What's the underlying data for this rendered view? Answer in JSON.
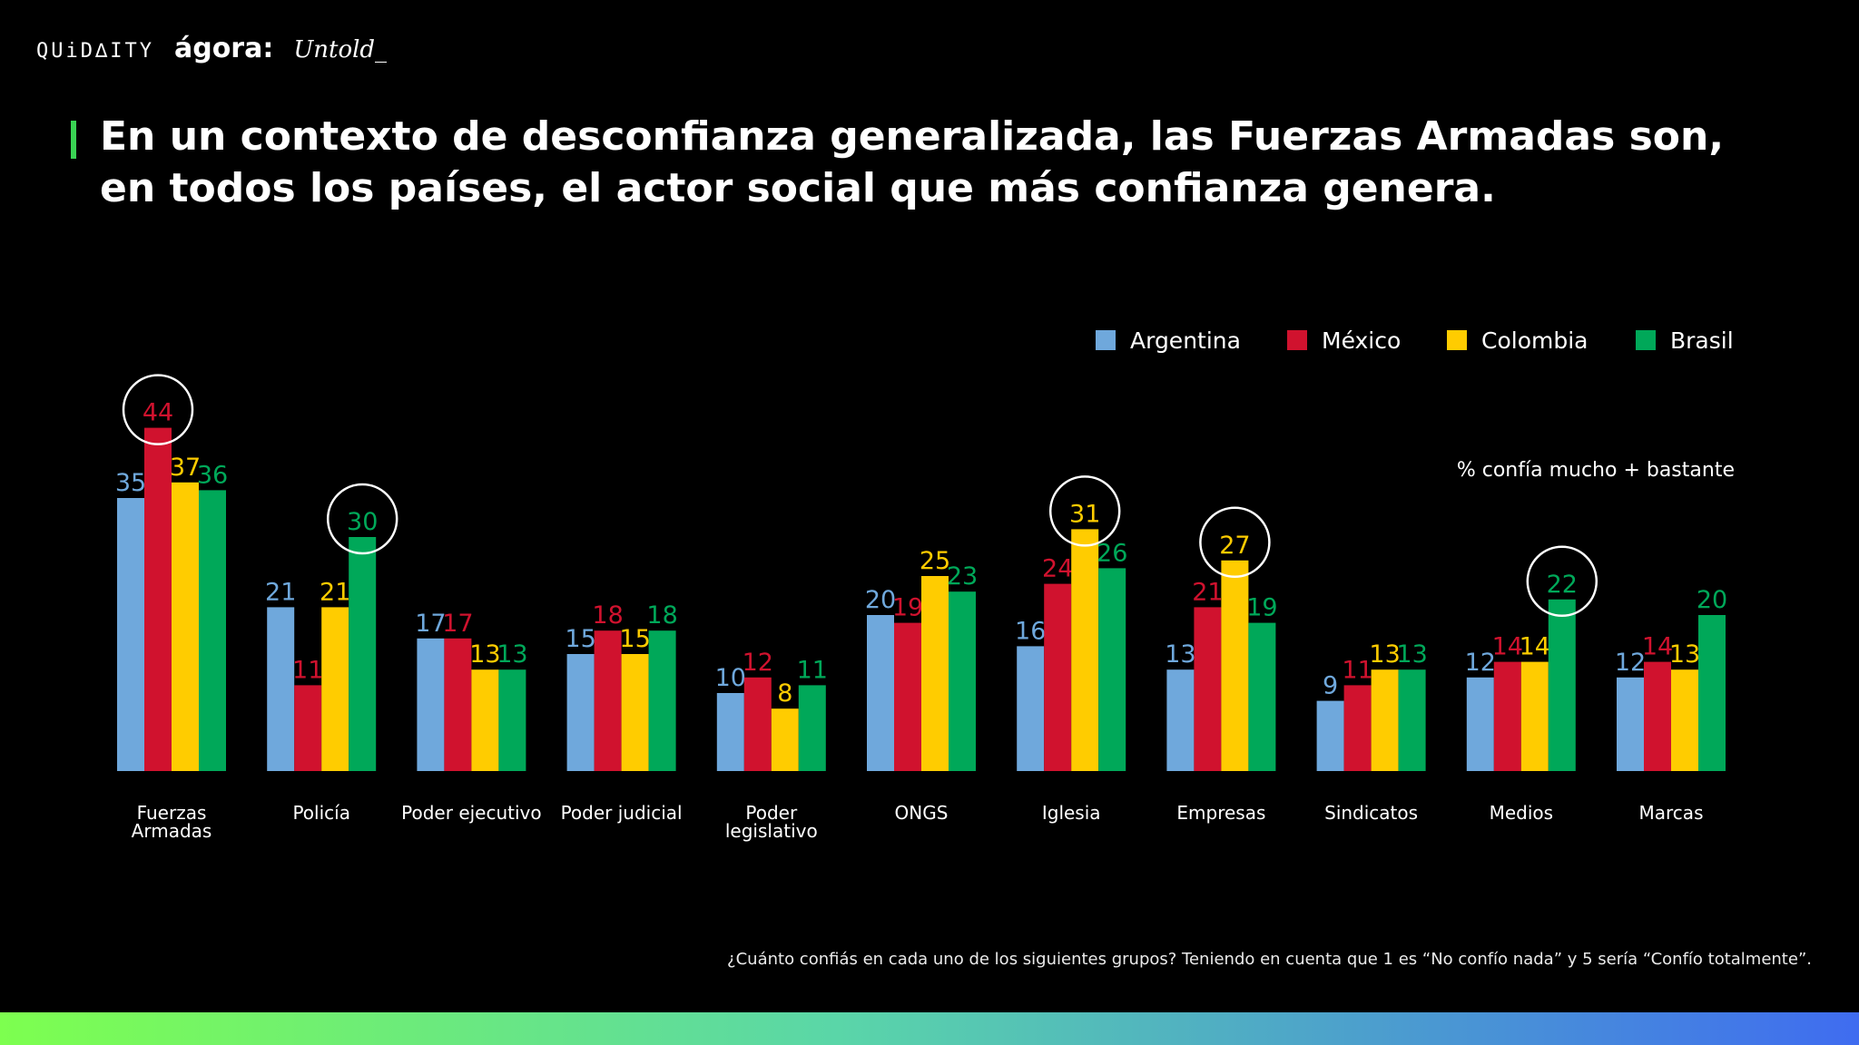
{
  "header": {
    "logos": [
      "QUiD∆ITY",
      "ágora:",
      "Untold_"
    ],
    "title": "En un contexto de desconfianza generalizada, las Fuerzas Armadas son, en todos los países, el actor social que más confianza genera."
  },
  "footer": {
    "question": "¿Cuánto confiás en cada uno de los siguientes grupos? Teniendo en cuenta que 1 es “No confío nada” y 5 sería “Confío totalmente”."
  },
  "colors": {
    "Argentina": "#6fa8dc",
    "México": "#d0122e",
    "Colombia": "#ffcc00",
    "Brasil": "#00a859"
  },
  "chart_data": {
    "type": "bar",
    "ylabel": "% confía mucho + bastante",
    "legend_position": "top-right",
    "grid": false,
    "categories": [
      "Fuerzas Armadas",
      "Policía",
      "Poder ejecutivo",
      "Poder judicial",
      "Poder legislativo",
      "ONGS",
      "Iglesia",
      "Empresas",
      "Sindicatos",
      "Medios",
      "Marcas"
    ],
    "series": [
      {
        "name": "Argentina",
        "values": [
          35,
          21,
          17,
          15,
          10,
          20,
          16,
          13,
          9,
          12,
          12
        ]
      },
      {
        "name": "México",
        "values": [
          44,
          11,
          17,
          18,
          12,
          19,
          24,
          21,
          11,
          14,
          14
        ]
      },
      {
        "name": "Colombia",
        "values": [
          37,
          21,
          13,
          15,
          8,
          25,
          31,
          27,
          13,
          14,
          13
        ]
      },
      {
        "name": "Brasil",
        "values": [
          36,
          30,
          13,
          18,
          11,
          23,
          26,
          19,
          13,
          22,
          20
        ]
      }
    ],
    "highlights": [
      {
        "category": "Fuerzas Armadas",
        "series": "México"
      },
      {
        "category": "Policía",
        "series": "Brasil"
      },
      {
        "category": "Iglesia",
        "series": "Colombia"
      },
      {
        "category": "Empresas",
        "series": "Colombia"
      },
      {
        "category": "Medios",
        "series": "Brasil"
      }
    ]
  }
}
